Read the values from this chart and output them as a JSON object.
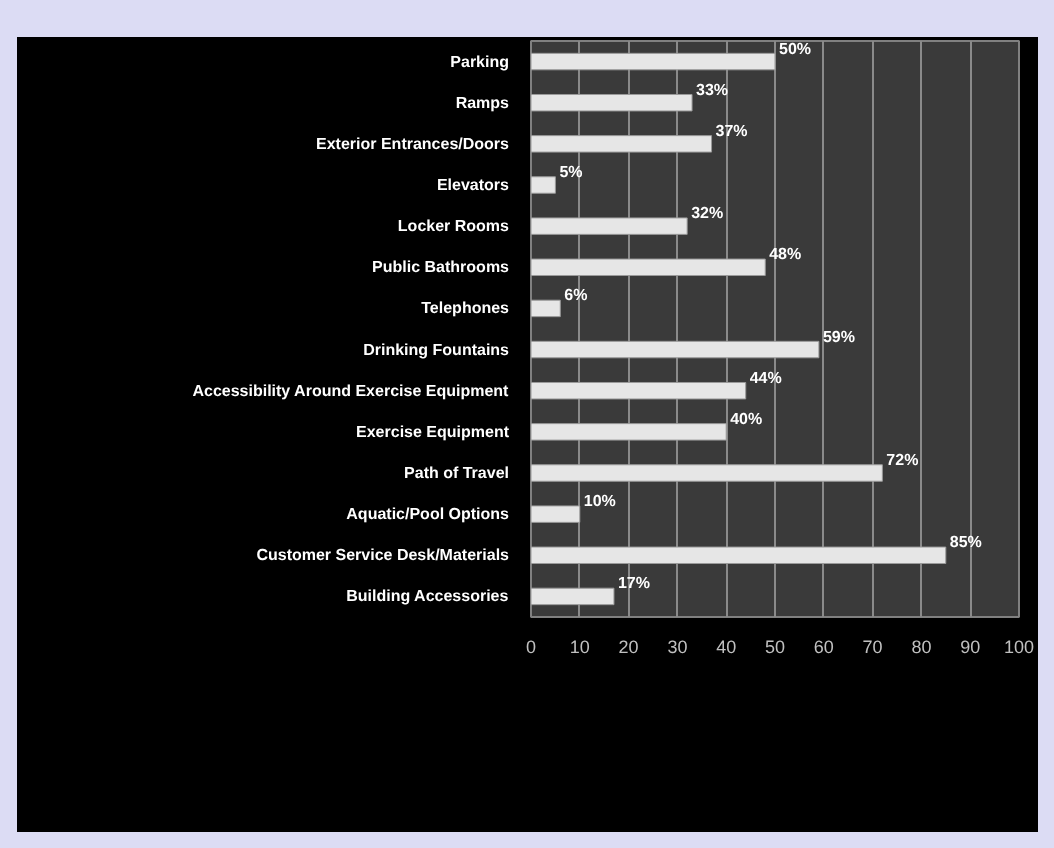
{
  "chart_data": {
    "type": "bar",
    "orientation": "horizontal",
    "categories": [
      "Parking",
      "Ramps",
      "Exterior Entrances/Doors",
      "Elevators",
      "Locker Rooms",
      "Public Bathrooms",
      "Telephones",
      "Drinking Fountains",
      "Accessibility Around Exercise Equipment",
      "Exercise Equipment",
      "Path of Travel",
      "Aquatic/Pool Options",
      "Customer Service Desk/Materials",
      "Building Accessories"
    ],
    "values": [
      50,
      33,
      37,
      5,
      32,
      48,
      6,
      59,
      44,
      40,
      72,
      10,
      85,
      17
    ],
    "value_labels": [
      "50%",
      "33%",
      "37%",
      "5%",
      "32%",
      "48%",
      "6%",
      "59%",
      "44%",
      "40%",
      "72%",
      "10%",
      "85%",
      "17%"
    ],
    "color": "#e6e6e6",
    "xlim": [
      0,
      100
    ],
    "xticks": [
      0,
      10,
      20,
      30,
      40,
      50,
      60,
      70,
      80,
      90,
      100
    ],
    "grid": "x"
  }
}
